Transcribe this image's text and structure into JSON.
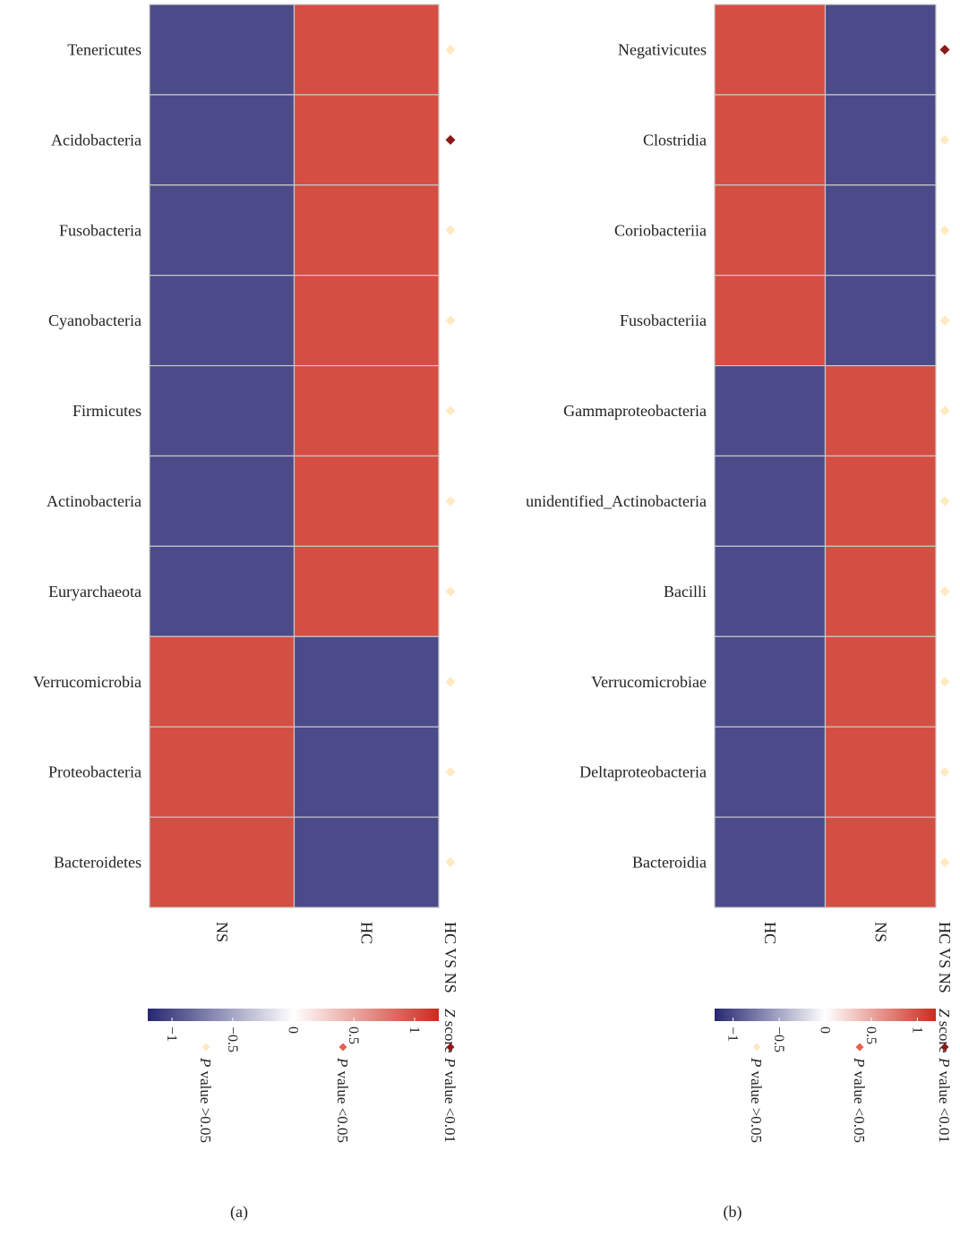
{
  "chart_data": [
    {
      "type": "heatmap",
      "panel_label": "(a)",
      "rows": [
        "Tenericutes",
        "Acidobacteria",
        "Fusobacteria",
        "Cyanobacteria",
        "Firmicutes",
        "Actinobacteria",
        "Euryarchaeota",
        "Verrucomicrobia",
        "Proteobacteria",
        "Bacteroidetes"
      ],
      "columns": [
        "NS",
        "HC"
      ],
      "values": [
        [
          -1,
          1
        ],
        [
          -1,
          1
        ],
        [
          -1,
          1
        ],
        [
          -1,
          1
        ],
        [
          -1,
          1
        ],
        [
          -1,
          1
        ],
        [
          -1,
          1
        ],
        [
          1,
          -1
        ],
        [
          1,
          -1
        ],
        [
          1,
          -1
        ]
      ],
      "significance_column": "HC VS NS",
      "significance": [
        "p>0.05",
        "p<0.01",
        "p>0.05",
        "p>0.05",
        "p>0.05",
        "p>0.05",
        "p>0.05",
        "p>0.05",
        "p>0.05",
        "p>0.05"
      ],
      "colorbar": {
        "title": "Z score",
        "range": [
          -1.2,
          1.2
        ],
        "ticks": [
          -1,
          -0.5,
          0,
          0.5,
          1
        ],
        "tick_labels": [
          "−1",
          "−0.5",
          "0",
          "0.5",
          "1"
        ],
        "colors": [
          "#272772",
          "#ffffff",
          "#cc2b1e"
        ]
      }
    },
    {
      "type": "heatmap",
      "panel_label": "(b)",
      "rows": [
        "Negativicutes",
        "Clostridia",
        "Coriobacteriia",
        "Fusobacteriia",
        "Gammaproteobacteria",
        "unidentified_Actinobacteria",
        "Bacilli",
        "Verrucomicrobiae",
        "Deltaproteobacteria",
        "Bacteroidia"
      ],
      "columns": [
        "HC",
        "NS"
      ],
      "values": [
        [
          1,
          -1
        ],
        [
          1,
          -1
        ],
        [
          1,
          -1
        ],
        [
          1,
          -1
        ],
        [
          -1,
          1
        ],
        [
          -1,
          1
        ],
        [
          -1,
          1
        ],
        [
          -1,
          1
        ],
        [
          -1,
          1
        ],
        [
          -1,
          1
        ]
      ],
      "significance_column": "HC VS NS",
      "significance": [
        "p<0.01",
        "p>0.05",
        "p>0.05",
        "p>0.05",
        "p>0.05",
        "p>0.05",
        "p>0.05",
        "p>0.05",
        "p>0.05",
        "p>0.05"
      ],
      "colorbar": {
        "title": "Z score",
        "range": [
          -1.2,
          1.2
        ],
        "ticks": [
          -1,
          -0.5,
          0,
          0.5,
          1
        ],
        "tick_labels": [
          "−1",
          "−0.5",
          "0",
          "0.5",
          "1"
        ],
        "colors": [
          "#272772",
          "#ffffff",
          "#cc2b1e"
        ]
      }
    }
  ],
  "legend": [
    {
      "key": "p<0.01",
      "italic": "P",
      "text": " value <0.01",
      "color": "#8b1a1a"
    },
    {
      "key": "p<0.05",
      "italic": "P",
      "text": " value <0.05",
      "color": "#e8604a"
    },
    {
      "key": "p>0.05",
      "italic": "P",
      "text": " value >0.05",
      "color": "#ffe9c2"
    }
  ],
  "colors": {
    "high": "#cc2b1e",
    "low": "#272772",
    "grid": "#c8c8c8"
  }
}
